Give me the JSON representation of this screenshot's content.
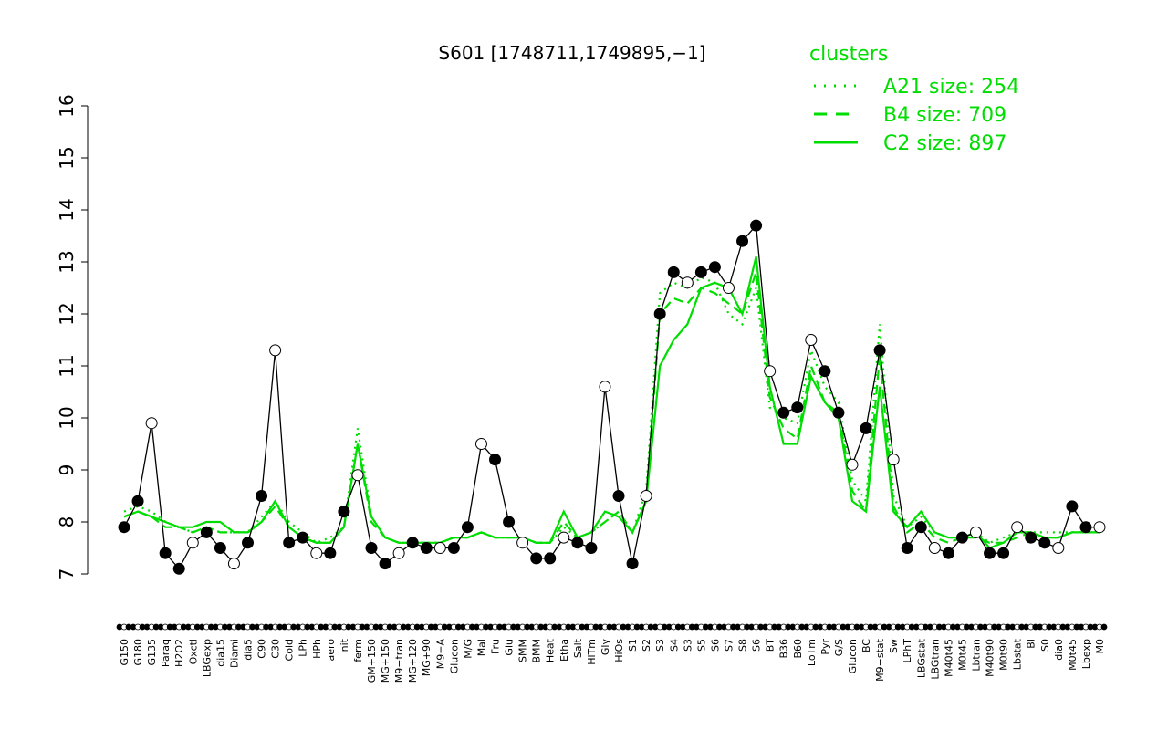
{
  "chart_data": {
    "type": "line",
    "title": "S601 [1748711,1749895,−1]",
    "ylim": [
      7,
      16
    ],
    "yticks": [
      "7",
      "8",
      "9",
      "10",
      "11",
      "12",
      "13",
      "14",
      "15",
      "16"
    ],
    "xtick_labels": [
      "G150",
      "G180",
      "G135",
      "Paraq",
      "H2O2",
      "Oxctl",
      "LBGexp",
      "dia15",
      "Diami",
      "dia5",
      "C90",
      "C30",
      "Cold",
      "LPh",
      "HPh",
      "aero",
      "nit",
      "ferm",
      "GM+150",
      "MG+150",
      "M9−tran",
      "MG+120",
      "MG+90",
      "M9−A",
      "Glucon",
      "M/G",
      "Mal",
      "Fru",
      "Glu",
      "SMM",
      "BMM",
      "Heat",
      "Etha",
      "Salt",
      "HiTm",
      "Gly",
      "HiOs",
      "S1",
      "S2",
      "S3",
      "S4",
      "S3",
      "S5",
      "S6",
      "S7",
      "S8",
      "S6",
      "BT",
      "B36",
      "B60",
      "LoTm",
      "Pyr",
      "G/S",
      "Glucon",
      "BC",
      "M9−stat",
      "Sw",
      "LPhT",
      "LBGstat",
      "LBGtran",
      "M40t45",
      "M0t45",
      "Lbtran",
      "M40t90",
      "M0t90",
      "Lbstat",
      "BI",
      "S0",
      "dia0",
      "M0t45",
      "Lbexp",
      "M0"
    ],
    "series": [
      {
        "name": "A21 size: 254",
        "style": "dotted",
        "values": [
          8.2,
          8.3,
          8.2,
          8.0,
          7.9,
          7.8,
          7.9,
          7.8,
          7.8,
          7.8,
          8.1,
          8.4,
          8.0,
          7.8,
          7.6,
          7.7,
          7.9,
          9.8,
          8.1,
          7.7,
          7.6,
          7.6,
          7.6,
          7.6,
          7.7,
          7.7,
          7.8,
          7.7,
          7.7,
          7.7,
          7.6,
          7.6,
          7.9,
          7.7,
          7.8,
          8.0,
          8.2,
          7.8,
          8.6,
          12.4,
          12.6,
          12.5,
          12.7,
          12.6,
          12.0,
          11.8,
          12.5,
          10.2,
          10.0,
          9.9,
          11.3,
          10.6,
          10.3,
          8.8,
          8.4,
          11.8,
          8.5,
          7.9,
          8.1,
          7.8,
          7.7,
          7.7,
          7.8,
          7.6,
          7.7,
          7.8,
          7.8,
          7.8,
          7.8,
          7.8,
          7.8,
          7.8
        ]
      },
      {
        "name": "B4 size: 709",
        "style": "dashed",
        "values": [
          8.1,
          8.2,
          8.1,
          7.9,
          7.9,
          7.8,
          7.9,
          7.8,
          7.8,
          7.8,
          8.0,
          8.3,
          7.9,
          7.7,
          7.6,
          7.6,
          7.9,
          9.5,
          8.0,
          7.7,
          7.6,
          7.6,
          7.6,
          7.6,
          7.7,
          7.7,
          7.8,
          7.7,
          7.7,
          7.7,
          7.6,
          7.6,
          8.0,
          7.7,
          7.8,
          8.0,
          8.2,
          7.8,
          8.4,
          12.0,
          12.3,
          12.2,
          12.5,
          12.4,
          12.2,
          12.0,
          12.8,
          10.4,
          9.8,
          9.6,
          11.0,
          10.3,
          10.1,
          8.6,
          8.2,
          11.2,
          8.3,
          7.8,
          8.0,
          7.7,
          7.6,
          7.7,
          7.7,
          7.6,
          7.6,
          7.7,
          7.8,
          7.7,
          7.7,
          7.8,
          7.8,
          7.8
        ]
      },
      {
        "name": "C2 size: 897",
        "style": "solid",
        "values": [
          8.1,
          8.2,
          8.1,
          8.0,
          7.9,
          7.9,
          8.0,
          8.0,
          7.8,
          7.8,
          8.0,
          8.4,
          7.9,
          7.7,
          7.6,
          7.6,
          7.9,
          9.5,
          8.1,
          7.7,
          7.6,
          7.6,
          7.6,
          7.6,
          7.7,
          7.7,
          7.8,
          7.7,
          7.7,
          7.7,
          7.6,
          7.6,
          8.2,
          7.7,
          7.8,
          8.2,
          8.1,
          7.8,
          8.4,
          11.0,
          11.5,
          11.8,
          12.5,
          12.6,
          12.5,
          12.0,
          13.1,
          10.6,
          9.5,
          9.5,
          10.8,
          10.3,
          10.0,
          8.4,
          8.2,
          10.6,
          8.2,
          7.9,
          8.2,
          7.8,
          7.7,
          7.7,
          7.8,
          7.5,
          7.6,
          7.8,
          7.8,
          7.7,
          7.7,
          7.8,
          7.8,
          7.8
        ]
      },
      {
        "name": "S601",
        "style": "points",
        "values": [
          7.9,
          8.4,
          9.9,
          7.4,
          7.1,
          7.6,
          7.8,
          7.5,
          7.2,
          7.6,
          8.5,
          11.3,
          7.6,
          7.7,
          7.4,
          7.4,
          8.2,
          8.9,
          7.5,
          7.2,
          7.4,
          7.6,
          7.5,
          7.5,
          7.5,
          7.9,
          9.5,
          9.2,
          8.0,
          7.6,
          7.3,
          7.3,
          7.7,
          7.6,
          7.5,
          10.6,
          8.5,
          7.2,
          8.5,
          12.0,
          12.8,
          12.6,
          12.8,
          12.9,
          12.5,
          13.4,
          13.7,
          10.9,
          10.1,
          10.2,
          11.5,
          10.9,
          10.1,
          9.1,
          9.8,
          11.3,
          9.2,
          7.5,
          7.9,
          7.5,
          7.4,
          7.7,
          7.8,
          7.4,
          7.4,
          7.9,
          7.7,
          7.6,
          7.5,
          8.3,
          7.9,
          7.9
        ]
      }
    ],
    "legend": {
      "title": "clusters",
      "placement": "top-right"
    },
    "colors": {
      "clusters": "#00dd00",
      "points_fill": "#000000",
      "axis": "#000000"
    }
  }
}
